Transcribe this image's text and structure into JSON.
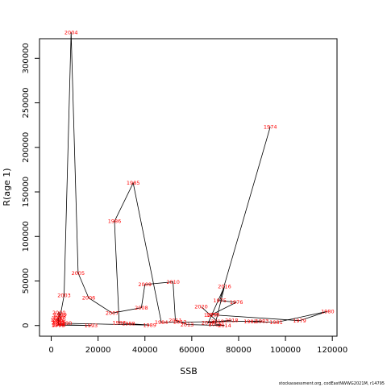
{
  "chart_data": {
    "type": "line",
    "title": "",
    "xlabel": "SSB",
    "ylabel": "R(age 1)",
    "xlim": [
      -5000,
      122000
    ],
    "ylim": [
      -12000,
      322000
    ],
    "xticks": [
      0,
      20000,
      40000,
      60000,
      80000,
      100000,
      120000
    ],
    "yticks": [
      0,
      50000,
      100000,
      150000,
      200000,
      250000,
      300000
    ],
    "grid": false,
    "legend": "none",
    "line_color": "#000000",
    "label_color": "#ff0000",
    "points": [
      {
        "year": "1974",
        "x": 93500,
        "y": 223000
      },
      {
        "year": "1975",
        "x": 72000,
        "y": 28000
      },
      {
        "year": "1976",
        "x": 79000,
        "y": 26000
      },
      {
        "year": "1977",
        "x": 68000,
        "y": 11500
      },
      {
        "year": "1978",
        "x": 69000,
        "y": 12000
      },
      {
        "year": "1979",
        "x": 106000,
        "y": 5500
      },
      {
        "year": "1980",
        "x": 118000,
        "y": 16000
      },
      {
        "year": "1981",
        "x": 96000,
        "y": 3500
      },
      {
        "year": "1982",
        "x": 85000,
        "y": 4500
      },
      {
        "year": "1983",
        "x": 90000,
        "y": 5000
      },
      {
        "year": "1984",
        "x": 47000,
        "y": 3500
      },
      {
        "year": "1985",
        "x": 35000,
        "y": 160000
      },
      {
        "year": "1986",
        "x": 27000,
        "y": 117000
      },
      {
        "year": "1987",
        "x": 29000,
        "y": 3000
      },
      {
        "year": "1988",
        "x": 33000,
        "y": 2000
      },
      {
        "year": "1989",
        "x": 42000,
        "y": 500
      },
      {
        "year": "1990",
        "x": 6000,
        "y": 2500
      },
      {
        "year": "1991",
        "x": 3500,
        "y": 1500
      },
      {
        "year": "1992",
        "x": 3000,
        "y": 500
      },
      {
        "year": "1993",
        "x": 17000,
        "y": 0
      },
      {
        "year": "1994",
        "x": 3000,
        "y": 1000
      },
      {
        "year": "1995",
        "x": 3200,
        "y": 4000
      },
      {
        "year": "1996",
        "x": 2500,
        "y": 6500
      },
      {
        "year": "1997",
        "x": 3000,
        "y": 8500
      },
      {
        "year": "1998",
        "x": 3500,
        "y": 10000
      },
      {
        "year": "1999",
        "x": 3800,
        "y": 12000
      },
      {
        "year": "2000",
        "x": 3300,
        "y": 14500
      },
      {
        "year": "2001",
        "x": 3000,
        "y": 3000
      },
      {
        "year": "2002",
        "x": 3500,
        "y": 5500
      },
      {
        "year": "2003",
        "x": 5500,
        "y": 34000
      },
      {
        "year": "2004",
        "x": 8500,
        "y": 329000
      },
      {
        "year": "2005",
        "x": 11500,
        "y": 59000
      },
      {
        "year": "2006",
        "x": 16000,
        "y": 31000
      },
      {
        "year": "2007",
        "x": 26000,
        "y": 14000
      },
      {
        "year": "2008",
        "x": 38500,
        "y": 20000
      },
      {
        "year": "2009",
        "x": 40000,
        "y": 46000
      },
      {
        "year": "2010",
        "x": 52000,
        "y": 49000
      },
      {
        "year": "2011",
        "x": 53000,
        "y": 6000
      },
      {
        "year": "2012",
        "x": 55000,
        "y": 4000
      },
      {
        "year": "2013",
        "x": 58000,
        "y": 1000
      },
      {
        "year": "2014",
        "x": 74000,
        "y": 0
      },
      {
        "year": "2015",
        "x": 70000,
        "y": 1500
      },
      {
        "year": "2016",
        "x": 74000,
        "y": 44000
      },
      {
        "year": "2017",
        "x": 67000,
        "y": 3000
      },
      {
        "year": "2018",
        "x": 77000,
        "y": 6000
      },
      {
        "year": "2019",
        "x": 71000,
        "y": 4500
      },
      {
        "year": "2020",
        "x": 64000,
        "y": 21000
      }
    ]
  },
  "footer_text": "stockassessment.org, codEastNWWG2021M, r14795"
}
